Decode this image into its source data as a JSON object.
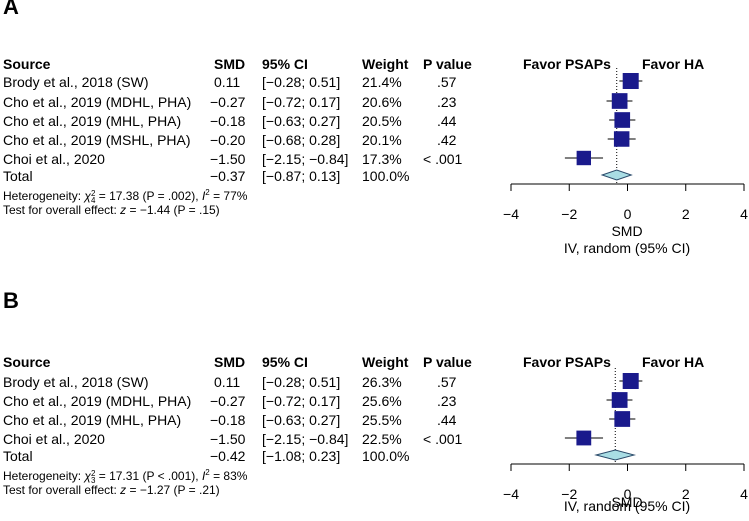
{
  "panels": [
    {
      "label": "A",
      "headers": {
        "source": "Source",
        "smd": "SMD",
        "ci": "95% CI",
        "weight": "Weight",
        "p": "P value"
      },
      "rows": [
        {
          "source": "Brody et al., 2018 (SW)",
          "smd": "0.11",
          "ci": "[−0.28;  0.51]",
          "weight": "21.4%",
          "p": ".57"
        },
        {
          "source": "Cho et al., 2019 (MDHL, PHA)",
          "smd": "−0.27",
          "ci": "[−0.72;  0.17]",
          "weight": "20.6%",
          "p": ".23"
        },
        {
          "source": "Cho et al., 2019 (MHL, PHA)",
          "smd": "−0.18",
          "ci": "[−0.63;  0.27]",
          "weight": "20.5%",
          "p": ".44"
        },
        {
          "source": "Cho et al., 2019 (MSHL, PHA)",
          "smd": "−0.20",
          "ci": "[−0.68;  0.28]",
          "weight": "20.1%",
          "p": ".42"
        },
        {
          "source": "Choi et al., 2020",
          "smd": "−1.50",
          "ci": "[−2.15; −0.84]",
          "weight": "17.3%",
          "p": "< .001"
        }
      ],
      "total": {
        "source": "Total",
        "smd": "−0.37",
        "ci": "[−0.87;  0.13]",
        "weight": "100.0%"
      },
      "heterogeneity": {
        "prefix": "Heterogeneity: ",
        "chi_sup": "2",
        "chi_sub": "4",
        "chi_rest": " = 17.38 (P = .002), ",
        "i2_rest": " = 77%"
      },
      "overall": {
        "prefix": "Test for overall effect: ",
        "z": "z",
        "rest": " = −1.44 (P = .15)"
      },
      "favor_left": "Favor PSAPs",
      "favor_right": "Favor HA",
      "xlabel": "SMD",
      "xlabel2": "IV, random (95% CI)"
    },
    {
      "label": "B",
      "headers": {
        "source": "Source",
        "smd": "SMD",
        "ci": "95% CI",
        "weight": "Weight",
        "p": "P value"
      },
      "rows": [
        {
          "source": "Brody et al., 2018 (SW)",
          "smd": "0.11",
          "ci": "[−0.28;  0.51]",
          "weight": "26.3%",
          "p": ".57"
        },
        {
          "source": "Cho et al., 2019 (MDHL, PHA)",
          "smd": "−0.27",
          "ci": "[−0.72;  0.17]",
          "weight": "25.6%",
          "p": ".23"
        },
        {
          "source": "Cho et al., 2019 (MHL, PHA)",
          "smd": "−0.18",
          "ci": "[−0.63;  0.27]",
          "weight": "25.5%",
          "p": ".44"
        },
        {
          "source": "Choi et al., 2020",
          "smd": "−1.50",
          "ci": "[−2.15; −0.84]",
          "weight": "22.5%",
          "p": "< .001"
        }
      ],
      "total": {
        "source": "Total",
        "smd": "−0.42",
        "ci": "[−1.08;  0.23]",
        "weight": "100.0%"
      },
      "heterogeneity": {
        "prefix": "Heterogeneity: ",
        "chi_sup": "2",
        "chi_sub": "3",
        "chi_rest": " = 17.31 (P < .001), ",
        "i2_rest": " = 83%"
      },
      "overall": {
        "prefix": "Test for overall effect: ",
        "z": "z",
        "rest": " = −1.27 (P = .21)"
      },
      "favor_left": "Favor PSAPs",
      "favor_right": "Favor HA",
      "xlabel": "SMD",
      "xlabel2": "IV, random (95% CI)"
    }
  ],
  "chart_data": [
    {
      "type": "forest",
      "title": "A",
      "xlabel": "SMD",
      "xlim": [
        -4,
        4
      ],
      "ticks": [
        -4,
        -2,
        0,
        2,
        4
      ],
      "tick_labels": [
        "−4",
        "−2",
        "0",
        "2",
        "4"
      ],
      "studies": [
        {
          "name": "Brody et al., 2018 (SW)",
          "est": 0.11,
          "lo": -0.28,
          "hi": 0.51,
          "weight": 21.4
        },
        {
          "name": "Cho et al., 2019 (MDHL, PHA)",
          "est": -0.27,
          "lo": -0.72,
          "hi": 0.17,
          "weight": 20.6
        },
        {
          "name": "Cho et al., 2019 (MHL, PHA)",
          "est": -0.18,
          "lo": -0.63,
          "hi": 0.27,
          "weight": 20.5
        },
        {
          "name": "Cho et al., 2019 (MSHL, PHA)",
          "est": -0.2,
          "lo": -0.68,
          "hi": 0.28,
          "weight": 20.1
        },
        {
          "name": "Choi et al., 2020",
          "est": -1.5,
          "lo": -2.15,
          "hi": -0.84,
          "weight": 17.3
        }
      ],
      "pooled": {
        "est": -0.37,
        "lo": -0.87,
        "hi": 0.13
      },
      "colors": {
        "square": "#1a1a8c",
        "diamond": "#a9dde4",
        "line": "#000000"
      }
    },
    {
      "type": "forest",
      "title": "B",
      "xlabel": "SMD",
      "xlim": [
        -4,
        4
      ],
      "ticks": [
        -4,
        -2,
        0,
        2,
        4
      ],
      "tick_labels": [
        "−4",
        "−2",
        "0",
        "2",
        "4"
      ],
      "studies": [
        {
          "name": "Brody et al., 2018 (SW)",
          "est": 0.11,
          "lo": -0.28,
          "hi": 0.51,
          "weight": 26.3
        },
        {
          "name": "Cho et al., 2019 (MDHL, PHA)",
          "est": -0.27,
          "lo": -0.72,
          "hi": 0.17,
          "weight": 25.6
        },
        {
          "name": "Cho et al., 2019 (MHL, PHA)",
          "est": -0.18,
          "lo": -0.63,
          "hi": 0.27,
          "weight": 25.5
        },
        {
          "name": "Choi et al., 2020",
          "est": -1.5,
          "lo": -2.15,
          "hi": -0.84,
          "weight": 22.5
        }
      ],
      "pooled": {
        "est": -0.42,
        "lo": -1.08,
        "hi": 0.23
      },
      "colors": {
        "square": "#1a1a8c",
        "diamond": "#a9dde4",
        "line": "#000000"
      }
    }
  ]
}
